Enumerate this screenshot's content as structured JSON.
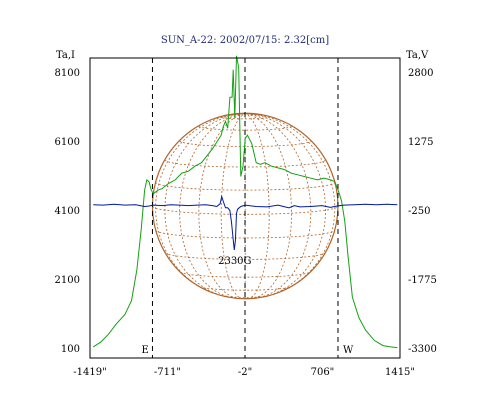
{
  "chart_data": {
    "type": "line",
    "title": "SUN_A-22: 2002/07/15: 2.32[cm]",
    "ylabel_left": "Ta,I",
    "ylabel_right": "Ta,V",
    "x_ticks": [
      {
        "label": "-1419\"",
        "value": -1419
      },
      {
        "label": "-711\"",
        "value": -711
      },
      {
        "label": "-2\"",
        "value": -2
      },
      {
        "label": "706\"",
        "value": 706
      },
      {
        "label": "1415\"",
        "value": 1415
      }
    ],
    "xlim": [
      -1419,
      1415
    ],
    "left_ticks": [
      {
        "label": "100",
        "value": 100
      },
      {
        "label": "2100",
        "value": 2100
      },
      {
        "label": "4100",
        "value": 4100
      },
      {
        "label": "6100",
        "value": 6100
      },
      {
        "label": "8100",
        "value": 8100
      }
    ],
    "left_ylim": [
      100,
      8100
    ],
    "right_ticks": [
      {
        "label": "-3300",
        "value": -3300
      },
      {
        "label": "-1775",
        "value": -1775
      },
      {
        "label": "-250",
        "value": -250
      },
      {
        "label": "1275",
        "value": 1275
      },
      {
        "label": "2800",
        "value": 2800
      }
    ],
    "right_ylim": [
      -3300,
      2800
    ],
    "markers": [
      {
        "label": "E",
        "x": -848
      },
      {
        "label": "-2\"",
        "x": -2
      },
      {
        "label": "W",
        "x": 848
      }
    ],
    "annotations": [
      {
        "text": "2330G",
        "x": -95,
        "y": -1110
      }
    ],
    "solar_disk": {
      "radius_arcsec": 848,
      "color": "#b0642a"
    },
    "series": [
      {
        "axis": "left",
        "color": "#15a015",
        "points": [
          [
            -1390,
            160
          ],
          [
            -1320,
            300
          ],
          [
            -1250,
            530
          ],
          [
            -1180,
            820
          ],
          [
            -1100,
            1100
          ],
          [
            -1040,
            1500
          ],
          [
            -990,
            2400
          ],
          [
            -950,
            3600
          ],
          [
            -920,
            4700
          ],
          [
            -900,
            5000
          ],
          [
            -880,
            4950
          ],
          [
            -860,
            4720
          ],
          [
            -840,
            4600
          ],
          [
            -800,
            4700
          ],
          [
            -760,
            4750
          ],
          [
            -700,
            4900
          ],
          [
            -640,
            5000
          ],
          [
            -580,
            5200
          ],
          [
            -520,
            5250
          ],
          [
            -460,
            5400
          ],
          [
            -400,
            5500
          ],
          [
            -350,
            5700
          ],
          [
            -300,
            5900
          ],
          [
            -260,
            6100
          ],
          [
            -220,
            6300
          ],
          [
            -200,
            6550
          ],
          [
            -180,
            6700
          ],
          [
            -160,
            6500
          ],
          [
            -140,
            7400
          ],
          [
            -120,
            7400
          ],
          [
            -110,
            8200
          ],
          [
            -95,
            6800
          ],
          [
            -80,
            8600
          ],
          [
            -60,
            8250
          ],
          [
            -40,
            5100
          ],
          [
            -20,
            5400
          ],
          [
            0,
            6200
          ],
          [
            20,
            6300
          ],
          [
            60,
            6050
          ],
          [
            100,
            5500
          ],
          [
            140,
            5450
          ],
          [
            180,
            5500
          ],
          [
            240,
            5400
          ],
          [
            300,
            5350
          ],
          [
            360,
            5300
          ],
          [
            420,
            5200
          ],
          [
            480,
            5150
          ],
          [
            540,
            5100
          ],
          [
            600,
            5050
          ],
          [
            660,
            5000
          ],
          [
            720,
            5050
          ],
          [
            780,
            5000
          ],
          [
            820,
            4950
          ],
          [
            850,
            4700
          ],
          [
            880,
            4400
          ],
          [
            910,
            3800
          ],
          [
            940,
            2800
          ],
          [
            980,
            1600
          ],
          [
            1040,
            1000
          ],
          [
            1100,
            650
          ],
          [
            1180,
            350
          ],
          [
            1260,
            200
          ],
          [
            1330,
            160
          ],
          [
            1390,
            140
          ]
        ]
      },
      {
        "axis": "right",
        "color": "#001a9e",
        "points": [
          [
            -1390,
            -110
          ],
          [
            -1300,
            -120
          ],
          [
            -1200,
            -100
          ],
          [
            -1100,
            -120
          ],
          [
            -1000,
            -110
          ],
          [
            -920,
            -150
          ],
          [
            -880,
            -140
          ],
          [
            -840,
            -120
          ],
          [
            -760,
            -130
          ],
          [
            -680,
            -110
          ],
          [
            -600,
            -120
          ],
          [
            -520,
            -130
          ],
          [
            -440,
            -120
          ],
          [
            -360,
            -110
          ],
          [
            -300,
            -130
          ],
          [
            -260,
            -150
          ],
          [
            -230,
            -90
          ],
          [
            -215,
            70
          ],
          [
            -200,
            -40
          ],
          [
            -180,
            -180
          ],
          [
            -160,
            -180
          ],
          [
            -140,
            -240
          ],
          [
            -125,
            -500
          ],
          [
            -110,
            -880
          ],
          [
            -100,
            -1110
          ],
          [
            -90,
            -900
          ],
          [
            -80,
            -300
          ],
          [
            -70,
            -210
          ],
          [
            -40,
            -150
          ],
          [
            0,
            -120
          ],
          [
            100,
            -150
          ],
          [
            200,
            -160
          ],
          [
            300,
            -120
          ],
          [
            400,
            -180
          ],
          [
            450,
            -130
          ],
          [
            500,
            -160
          ],
          [
            600,
            -150
          ],
          [
            700,
            -130
          ],
          [
            780,
            -170
          ],
          [
            840,
            -140
          ],
          [
            900,
            -120
          ],
          [
            1000,
            -110
          ],
          [
            1100,
            -100
          ],
          [
            1200,
            -110
          ],
          [
            1300,
            -100
          ],
          [
            1390,
            -110
          ]
        ]
      }
    ]
  }
}
